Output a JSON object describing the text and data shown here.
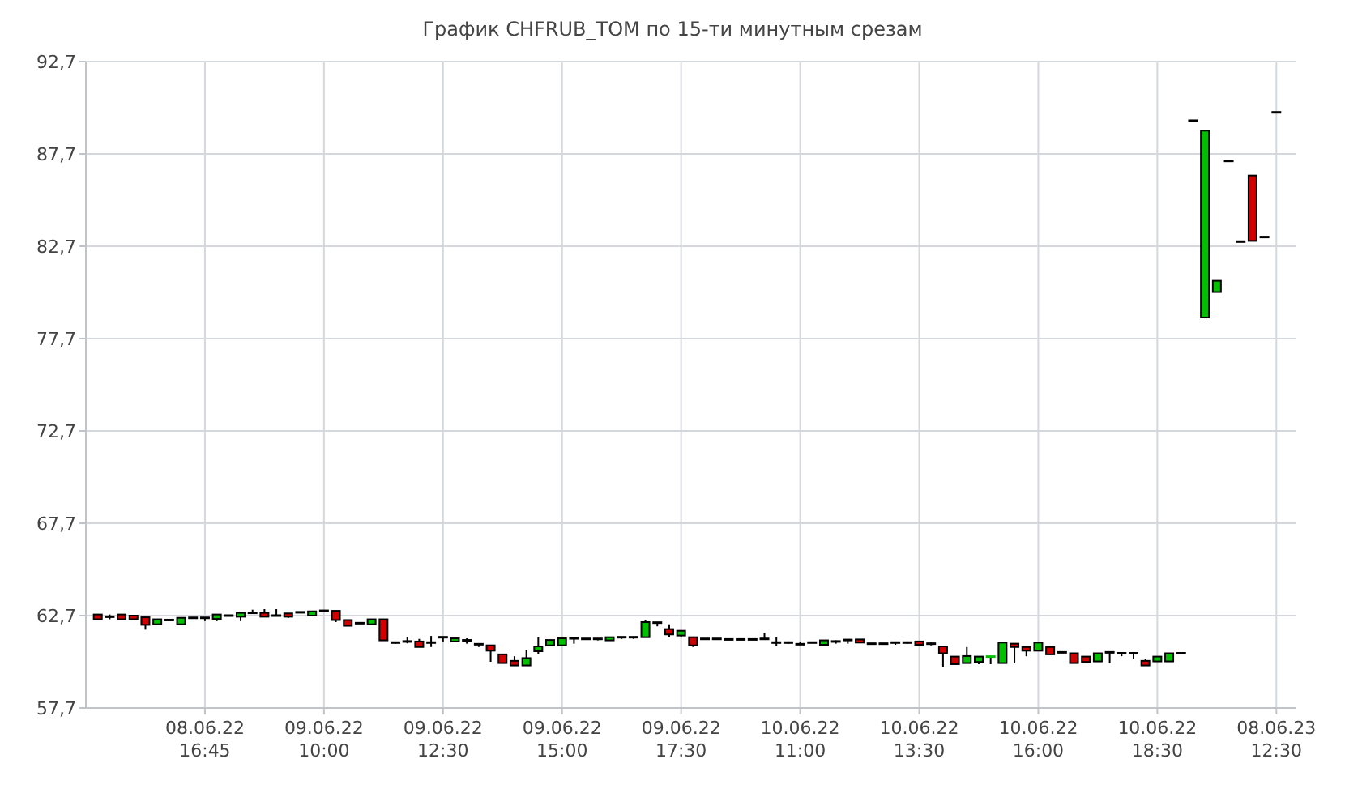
{
  "chart_data": {
    "type": "candlestick",
    "title": "График CHFRUB_TOM по 15-ти минутным срезам",
    "categories": [
      null,
      null,
      null,
      null,
      null,
      null,
      null,
      null,
      null,
      "08.06.22 16:45",
      null,
      null,
      null,
      null,
      null,
      null,
      null,
      null,
      null,
      "09.06.22 10:00",
      null,
      null,
      null,
      null,
      null,
      null,
      null,
      null,
      null,
      "09.06.22 12:30",
      null,
      null,
      null,
      null,
      null,
      null,
      null,
      null,
      null,
      "09.06.22 15:00",
      null,
      null,
      null,
      null,
      null,
      null,
      null,
      null,
      null,
      "09.06.22 17:30",
      null,
      null,
      null,
      null,
      null,
      null,
      null,
      null,
      null,
      "10.06.22 11:00",
      null,
      null,
      null,
      null,
      null,
      null,
      null,
      null,
      null,
      "10.06.22 13:30",
      null,
      null,
      null,
      null,
      null,
      null,
      null,
      null,
      null,
      "10.06.22 16:00",
      null,
      null,
      null,
      null,
      null,
      null,
      null,
      null,
      null,
      "10.06.22 18:30",
      null,
      null,
      null,
      null,
      null,
      null,
      null,
      null,
      null,
      "08.06.23 12:30"
    ],
    "ohlc": [
      [
        62.76,
        62.76,
        62.5,
        62.5
      ],
      [
        62.64,
        62.76,
        62.5,
        62.64
      ],
      [
        62.76,
        62.76,
        62.5,
        62.5
      ],
      [
        62.7,
        62.7,
        62.5,
        62.5
      ],
      [
        62.61,
        62.61,
        61.94,
        62.2
      ],
      [
        62.23,
        62.5,
        62.23,
        62.5
      ],
      [
        62.46,
        62.52,
        62.4,
        62.46
      ],
      [
        62.23,
        62.58,
        62.23,
        62.58
      ],
      [
        62.58,
        62.58,
        62.58,
        62.58
      ],
      [
        62.58,
        62.58,
        62.4,
        62.58
      ],
      [
        62.52,
        62.76,
        62.4,
        62.76
      ],
      [
        62.7,
        62.7,
        62.7,
        62.7
      ],
      [
        62.64,
        62.85,
        62.4,
        62.85
      ],
      [
        62.85,
        63.02,
        62.85,
        62.85
      ],
      [
        62.85,
        63.05,
        62.64,
        62.64
      ],
      [
        62.7,
        63.05,
        62.7,
        62.7
      ],
      [
        62.82,
        62.82,
        62.58,
        62.64
      ],
      [
        62.88,
        62.88,
        62.88,
        62.88
      ],
      [
        62.7,
        62.93,
        62.7,
        62.93
      ],
      [
        62.96,
        62.96,
        62.96,
        62.96
      ],
      [
        62.96,
        62.96,
        62.35,
        62.46
      ],
      [
        62.46,
        62.46,
        62.15,
        62.15
      ],
      [
        62.29,
        62.29,
        62.29,
        62.29
      ],
      [
        62.23,
        62.5,
        62.23,
        62.5
      ],
      [
        62.5,
        62.5,
        61.36,
        61.36
      ],
      [
        61.24,
        61.27,
        61.18,
        61.24
      ],
      [
        61.3,
        61.53,
        61.2,
        61.3
      ],
      [
        61.3,
        61.44,
        61.0,
        61.0
      ],
      [
        61.24,
        61.6,
        61.0,
        61.24
      ],
      [
        61.53,
        61.53,
        61.3,
        61.53
      ],
      [
        61.3,
        61.47,
        61.3,
        61.47
      ],
      [
        61.36,
        61.47,
        61.18,
        61.36
      ],
      [
        61.15,
        61.15,
        61.0,
        61.15
      ],
      [
        61.09,
        61.09,
        60.2,
        60.8
      ],
      [
        60.6,
        60.6,
        60.13,
        60.13
      ],
      [
        60.25,
        60.5,
        60.0,
        60.0
      ],
      [
        60.0,
        60.86,
        60.0,
        60.4
      ],
      [
        60.77,
        61.53,
        60.6,
        61.03
      ],
      [
        61.09,
        61.38,
        61.09,
        61.38
      ],
      [
        61.09,
        61.47,
        61.09,
        61.47
      ],
      [
        61.47,
        61.47,
        61.18,
        61.47
      ],
      [
        61.44,
        61.44,
        61.44,
        61.44
      ],
      [
        61.44,
        61.44,
        61.36,
        61.44
      ],
      [
        61.36,
        61.53,
        61.36,
        61.53
      ],
      [
        61.53,
        61.53,
        61.44,
        61.53
      ],
      [
        61.53,
        61.53,
        61.44,
        61.53
      ],
      [
        61.53,
        62.47,
        61.53,
        62.35
      ],
      [
        62.32,
        62.32,
        62.12,
        62.32
      ],
      [
        61.97,
        62.23,
        61.53,
        61.68
      ],
      [
        61.62,
        61.88,
        61.53,
        61.88
      ],
      [
        61.53,
        61.53,
        61.0,
        61.09
      ],
      [
        61.44,
        61.44,
        61.44,
        61.44
      ],
      [
        61.44,
        61.44,
        61.44,
        61.44
      ],
      [
        61.41,
        61.41,
        61.41,
        61.41
      ],
      [
        61.41,
        61.41,
        61.41,
        61.41
      ],
      [
        61.41,
        61.41,
        61.41,
        61.41
      ],
      [
        61.44,
        61.76,
        61.44,
        61.44
      ],
      [
        61.24,
        61.53,
        61.06,
        61.24
      ],
      [
        61.24,
        61.3,
        61.18,
        61.24
      ],
      [
        61.15,
        61.3,
        61.15,
        61.15
      ],
      [
        61.24,
        61.24,
        61.24,
        61.24
      ],
      [
        61.12,
        61.36,
        61.12,
        61.36
      ],
      [
        61.3,
        61.36,
        61.18,
        61.3
      ],
      [
        61.38,
        61.38,
        61.18,
        61.38
      ],
      [
        61.41,
        61.41,
        61.24,
        61.24
      ],
      [
        61.18,
        61.18,
        61.18,
        61.18
      ],
      [
        61.18,
        61.18,
        61.18,
        61.18
      ],
      [
        61.24,
        61.24,
        61.12,
        61.24
      ],
      [
        61.24,
        61.3,
        61.18,
        61.24
      ],
      [
        61.3,
        61.3,
        61.12,
        61.12
      ],
      [
        61.18,
        61.24,
        61.09,
        61.18
      ],
      [
        61.03,
        61.03,
        59.93,
        60.66
      ],
      [
        60.48,
        60.48,
        60.07,
        60.07
      ],
      [
        60.13,
        61.0,
        60.13,
        60.51
      ],
      [
        60.19,
        60.48,
        60.07,
        60.48
      ],
      [
        60.48,
        60.48,
        60.07,
        60.48
      ],
      [
        60.13,
        61.24,
        60.13,
        61.24
      ],
      [
        61.18,
        61.18,
        60.13,
        61.0
      ],
      [
        61.0,
        61.0,
        60.5,
        60.8
      ],
      [
        60.8,
        61.24,
        60.8,
        61.24
      ],
      [
        61.0,
        61.0,
        60.6,
        60.6
      ],
      [
        60.71,
        60.71,
        60.71,
        60.71
      ],
      [
        60.66,
        60.66,
        60.13,
        60.13
      ],
      [
        60.48,
        60.48,
        60.13,
        60.19
      ],
      [
        60.22,
        60.66,
        60.22,
        60.66
      ],
      [
        60.71,
        60.71,
        60.13,
        60.71
      ],
      [
        60.66,
        60.66,
        60.5,
        60.66
      ],
      [
        60.66,
        60.66,
        60.37,
        60.66
      ],
      [
        60.25,
        60.37,
        60.0,
        60.0
      ],
      [
        60.22,
        60.48,
        60.22,
        60.48
      ],
      [
        60.22,
        60.66,
        60.22,
        60.66
      ],
      [
        60.66,
        60.66,
        60.66,
        60.66
      ],
      [
        89.5,
        89.5,
        89.5,
        89.5
      ],
      [
        78.84,
        88.96,
        78.84,
        88.96
      ],
      [
        80.22,
        80.83,
        80.22,
        80.83
      ],
      [
        87.32,
        87.32,
        87.32,
        87.32
      ],
      [
        82.95,
        82.95,
        82.95,
        82.95
      ],
      [
        86.53,
        86.53,
        82.99,
        82.99
      ],
      [
        83.2,
        83.2,
        83.2,
        83.2
      ],
      [
        89.95,
        89.95,
        89.95,
        89.95
      ]
    ],
    "colors": [
      "#d00000",
      "#000000",
      "#d00000",
      "#d00000",
      "#d00000",
      "#00c000",
      "#000000",
      "#00c000",
      "#000000",
      "#000000",
      "#00c000",
      "#000000",
      "#00c000",
      "#000000",
      "#d00000",
      "#000000",
      "#d00000",
      "#000000",
      "#00c000",
      "#000000",
      "#d00000",
      "#d00000",
      "#000000",
      "#00c000",
      "#d00000",
      "#000000",
      "#000000",
      "#d00000",
      "#000000",
      "#000000",
      "#00c000",
      "#000000",
      "#000000",
      "#d00000",
      "#d00000",
      "#d00000",
      "#00c000",
      "#00c000",
      "#00c000",
      "#00c000",
      "#000000",
      "#000000",
      "#000000",
      "#00c000",
      "#000000",
      "#000000",
      "#00c000",
      "#000000",
      "#d00000",
      "#00c000",
      "#d00000",
      "#000000",
      "#000000",
      "#000000",
      "#000000",
      "#000000",
      "#000000",
      "#000000",
      "#000000",
      "#000000",
      "#000000",
      "#00c000",
      "#000000",
      "#000000",
      "#d00000",
      "#000000",
      "#000000",
      "#000000",
      "#000000",
      "#d00000",
      "#000000",
      "#d00000",
      "#d00000",
      "#00c000",
      "#00c000",
      "#00c000",
      "#00c000",
      "#d00000",
      "#d00000",
      "#00c000",
      "#d00000",
      "#000000",
      "#d00000",
      "#d00000",
      "#00c000",
      "#000000",
      "#000000",
      "#000000",
      "#d00000",
      "#00c000",
      "#00c000",
      "#000000",
      "#000000",
      "#00c000",
      "#00c000",
      "#000000",
      "#000000",
      "#d00000",
      "#000000",
      "#000000"
    ],
    "ylim": [
      57.7,
      92.7
    ],
    "yticks": [
      {
        "value": 57.7,
        "label": "57,7"
      },
      {
        "value": 62.7,
        "label": "62,7"
      },
      {
        "value": 67.7,
        "label": "67,7"
      },
      {
        "value": 72.7,
        "label": "72,7"
      },
      {
        "value": 77.7,
        "label": "77,7"
      },
      {
        "value": 82.7,
        "label": "82,7"
      },
      {
        "value": 87.7,
        "label": "87,7"
      },
      {
        "value": 92.7,
        "label": "92,7"
      }
    ],
    "grid": true
  }
}
